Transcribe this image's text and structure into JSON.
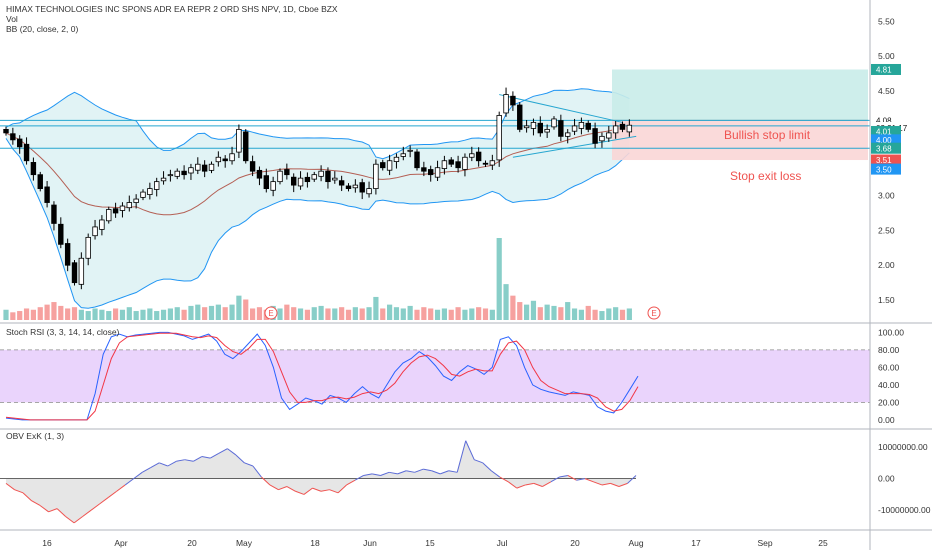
{
  "header": {
    "symbol_line": "HIMAX TECHNOLOGIES INC SPONS ADR EA REPR 2 ORD SHS NPV, 1D, Cboe BZX",
    "vol_label": "Vol",
    "bb_label": "BB (20, close, 2, 0)"
  },
  "colors": {
    "up": "#26a69a",
    "down": "#ef5350",
    "candle": "#000000",
    "bb_band": "#2196f3",
    "bb_basis": "#b45f54",
    "bb_fill": "#e1f3f5",
    "stoch_k": "#2962ff",
    "stoch_d": "#f23645",
    "stoch_zone": "#e5c9fb",
    "obv_up": "#5b6bd6",
    "obv_down": "#ef5350",
    "obv_fill": "#e6e6e6",
    "level_line": "#26a6d0",
    "profit_zone": "#c9ece9",
    "loss_zone": "#f9d6d6"
  },
  "chart_data": [
    {
      "type": "candlestick",
      "title": "HIMAX TECHNOLOGIES INC SPONS ADR EA REPR 2 ORD SHS NPV, 1D, Cboe BZX",
      "ylim": [
        1.3,
        5.75
      ],
      "y_ticks": [
        "5.50",
        "5.00",
        "4.50",
        "4.00",
        "3.50",
        "3.00",
        "2.50",
        "2.00",
        "1.50"
      ],
      "x_ticks": [
        "16",
        "Apr",
        "20",
        "May",
        "18",
        "Jun",
        "15",
        "Jul",
        "20",
        "Aug",
        "17",
        "Sep",
        "25"
      ],
      "price_badges": [
        {
          "label": "4.81",
          "value": 4.81,
          "color": "#26a69a"
        },
        {
          "label": "4.08",
          "value": 4.08,
          "color": "#ffffff"
        },
        {
          "label": "03:21:17",
          "value": 3.97,
          "color": "#ffffff"
        },
        {
          "label": "4.01",
          "value": 3.92,
          "color": "#26a69a"
        },
        {
          "label": "4.00",
          "value": 3.8,
          "color": "#2196f3"
        },
        {
          "label": "3.68",
          "value": 3.68,
          "color": "#26a69a"
        },
        {
          "label": "3.51",
          "value": 3.51,
          "color": "#ef5350"
        },
        {
          "label": "3.50",
          "value": 3.38,
          "color": "#2196f3"
        }
      ],
      "annotations": [
        {
          "text": "Bullish stop limit",
          "color": "#ef5350"
        },
        {
          "text": "Stop exit loss",
          "color": "#ef5350"
        }
      ],
      "horizontal_levels": [
        4.08,
        4.0,
        3.68
      ],
      "earnings_markers": [
        "E",
        "E"
      ],
      "close_series": [
        3.9,
        3.8,
        3.7,
        3.5,
        3.3,
        3.1,
        2.9,
        2.6,
        2.3,
        2.0,
        1.75,
        2.1,
        2.4,
        2.55,
        2.65,
        2.8,
        2.75,
        2.85,
        2.9,
        2.95,
        3.05,
        3.1,
        3.2,
        3.25,
        3.3,
        3.35,
        3.3,
        3.4,
        3.45,
        3.35,
        3.45,
        3.55,
        3.5,
        3.6,
        3.95,
        3.5,
        3.35,
        3.25,
        3.1,
        3.2,
        3.35,
        3.3,
        3.15,
        3.25,
        3.2,
        3.3,
        3.35,
        3.2,
        3.25,
        3.15,
        3.1,
        3.15,
        3.05,
        3.1,
        3.45,
        3.4,
        3.5,
        3.55,
        3.6,
        3.65,
        3.4,
        3.35,
        3.3,
        3.4,
        3.5,
        3.45,
        3.4,
        3.55,
        3.6,
        3.5,
        3.45,
        3.5,
        4.15,
        4.45,
        4.3,
        3.95,
        4.0,
        4.05,
        3.9,
        3.95,
        4.1,
        3.85,
        3.9,
        4.0,
        4.05,
        3.95,
        3.75,
        3.85,
        3.9,
        4.0,
        3.95,
        4.01
      ]
    },
    {
      "type": "bar",
      "title": "Vol",
      "values": [
        8,
        6,
        7,
        9,
        8,
        10,
        12,
        14,
        11,
        9,
        10,
        8,
        7,
        9,
        8,
        7,
        9,
        8,
        10,
        7,
        8,
        9,
        7,
        8,
        9,
        10,
        8,
        11,
        12,
        10,
        11,
        12,
        10,
        12,
        19,
        16,
        9,
        10,
        8,
        11,
        9,
        12,
        10,
        9,
        8,
        10,
        11,
        9,
        9,
        10,
        8,
        10,
        9,
        10,
        18,
        9,
        12,
        10,
        9,
        11,
        8,
        10,
        9,
        8,
        9,
        8,
        10,
        8,
        9,
        10,
        9,
        8,
        64,
        28,
        19,
        14,
        12,
        15,
        10,
        12,
        11,
        10,
        14,
        9,
        8,
        11,
        8,
        7,
        9,
        10,
        8,
        9
      ]
    },
    {
      "type": "line",
      "title": "Stoch RSI (3, 3, 14, 14, close)",
      "ylim": [
        -7,
        105
      ],
      "y_ticks": [
        "100.00",
        "80.00",
        "60.00",
        "40.00",
        "20.00",
        "0.00"
      ],
      "band": [
        20,
        80
      ],
      "series": [
        {
          "name": "K",
          "values": [
            2,
            1,
            0,
            0,
            0,
            0,
            0,
            0,
            0,
            0,
            0,
            30,
            75,
            95,
            98,
            95,
            97,
            98,
            99,
            100,
            100,
            98,
            96,
            92,
            95,
            98,
            90,
            75,
            70,
            78,
            88,
            98,
            85,
            60,
            25,
            12,
            18,
            25,
            22,
            18,
            28,
            25,
            20,
            30,
            38,
            30,
            25,
            40,
            55,
            65,
            70,
            78,
            72,
            62,
            50,
            45,
            55,
            62,
            58,
            52,
            60,
            92,
            95,
            85,
            60,
            40,
            35,
            32,
            30,
            28,
            32,
            30,
            28,
            15,
            10,
            8,
            20,
            35,
            50
          ]
        },
        {
          "name": "D",
          "values": [
            3,
            2,
            1,
            0,
            0,
            0,
            0,
            0,
            0,
            0,
            0,
            10,
            40,
            70,
            88,
            95,
            96,
            97,
            98,
            99,
            99,
            99,
            97,
            95,
            94,
            96,
            94,
            85,
            78,
            75,
            82,
            92,
            92,
            78,
            55,
            32,
            20,
            20,
            22,
            22,
            25,
            26,
            24,
            26,
            30,
            32,
            30,
            34,
            42,
            55,
            65,
            72,
            74,
            70,
            62,
            52,
            50,
            55,
            58,
            56,
            56,
            75,
            88,
            90,
            80,
            60,
            45,
            38,
            34,
            30,
            30,
            30,
            29,
            25,
            15,
            10,
            12,
            22,
            38
          ]
        }
      ]
    },
    {
      "type": "area",
      "title": "OBV ExK (1, 3)",
      "ylim": [
        -15000000,
        13500000
      ],
      "y_ticks": [
        "10000000.00",
        "0.00",
        "-10000000.00"
      ],
      "baseline": 0,
      "values": [
        -1500000,
        -3500000,
        -4500000,
        -7000000,
        -8500000,
        -10500000,
        -9500000,
        -12000000,
        -14000000,
        -12000000,
        -10000000,
        -8000000,
        -6000000,
        -4000000,
        -2000000,
        0,
        2000000,
        3500000,
        5000000,
        4000000,
        5500000,
        6000000,
        5500000,
        7000000,
        6500000,
        8000000,
        9500000,
        7500000,
        5000000,
        4000000,
        500000,
        -2000000,
        -3500000,
        -2500000,
        -4000000,
        -5000000,
        -3000000,
        -4000000,
        -3500000,
        -4500000,
        -2000000,
        -500000,
        1000000,
        1500000,
        1000000,
        2000000,
        1500000,
        2500000,
        2000000,
        3000000,
        2500000,
        1500000,
        2500000,
        2000000,
        12000000,
        6000000,
        5000000,
        2500000,
        500000,
        -1000000,
        -3000000,
        -2000000,
        -1500000,
        -2500000,
        -1000000,
        500000,
        1000000,
        -500000,
        0,
        -1000000,
        -2000000,
        -1500000,
        -2500000,
        -1500000,
        1000000
      ]
    }
  ]
}
